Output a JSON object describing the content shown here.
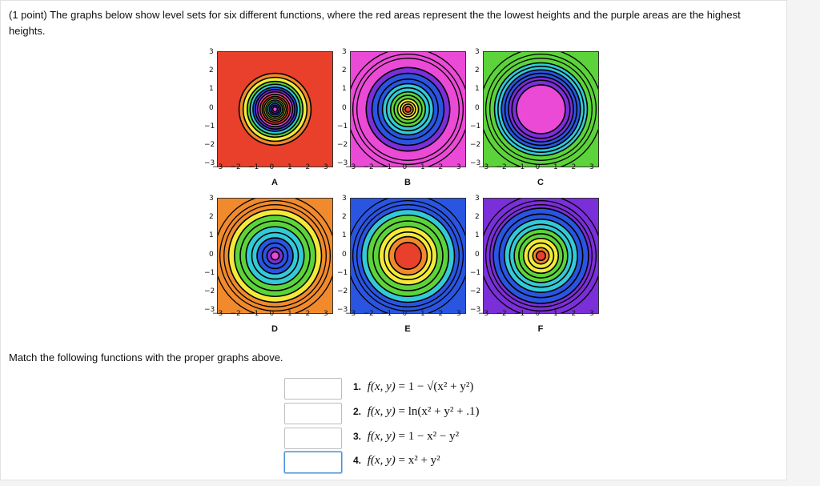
{
  "prompt": {
    "prefix": "(1 point)",
    "text": "The graphs below show level sets for six different functions, where the red areas represent the the lowest heights and the purple areas are the highest heights."
  },
  "axis": {
    "y_ticks": [
      "3",
      "2",
      "1",
      "0",
      "−1",
      "−2",
      "−3"
    ],
    "x_ticks": [
      "−3",
      "−2",
      "−1",
      "0",
      "1",
      "2",
      "3"
    ]
  },
  "plots": [
    {
      "label": "A",
      "description": "dense rings concentrated near center on red background"
    },
    {
      "label": "B",
      "description": "rings with purple outside"
    },
    {
      "label": "C",
      "description": "large magenta disc with rings near edges"
    },
    {
      "label": "D",
      "description": "purple center with evenly spaced rings"
    },
    {
      "label": "E",
      "description": "red center with evenly spaced rings"
    },
    {
      "label": "F",
      "description": "red center, closely spaced rings"
    }
  ],
  "match_text": "Match the following functions with the proper graphs above.",
  "answers": [
    {
      "value": ""
    },
    {
      "value": ""
    },
    {
      "value": ""
    },
    {
      "value": ""
    }
  ],
  "functions": [
    {
      "num": "1.",
      "lhs": "f(x, y)",
      "rhs": "= 1 − √(x² + y²)"
    },
    {
      "num": "2.",
      "lhs": "f(x, y)",
      "rhs": "= ln(x² + y² + .1)"
    },
    {
      "num": "3.",
      "lhs": "f(x, y)",
      "rhs": "= 1 − x² − y²"
    },
    {
      "num": "4.",
      "lhs": "f(x, y)",
      "rhs": "= x² + y²"
    }
  ],
  "colors": {
    "red": "#e8402a",
    "orange": "#f08a2c",
    "yellow": "#f2e93a",
    "green": "#5cd33a",
    "cyan": "#33c9d6",
    "blue": "#2a55e0",
    "purple": "#7a2fd8",
    "magenta": "#ea4ad6"
  }
}
